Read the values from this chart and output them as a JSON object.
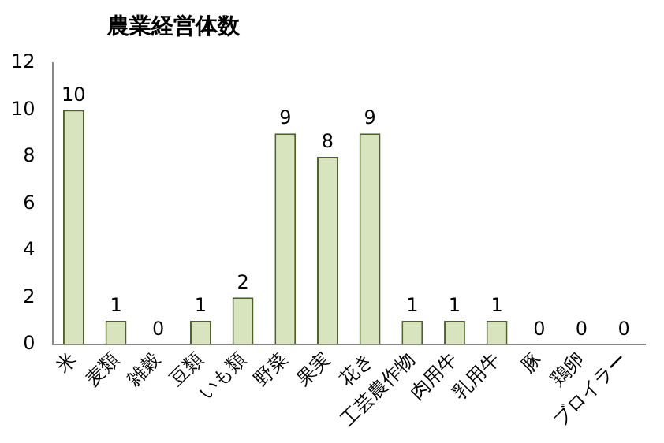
{
  "chart_data": {
    "type": "bar",
    "title": "農業経営体数",
    "categories": [
      "米",
      "麦類",
      "雑穀",
      "豆類",
      "いも類",
      "野菜",
      "果実",
      "花き",
      "工芸農作物",
      "肉用牛",
      "乳用牛",
      "豚",
      "鶏卵",
      "ブロイラー"
    ],
    "values": [
      10,
      1,
      0,
      1,
      2,
      9,
      8,
      9,
      1,
      1,
      1,
      0,
      0,
      0
    ],
    "color": "#d7e4bd",
    "ylim": [
      0,
      12
    ],
    "yticks": [
      0,
      2,
      4,
      6,
      8,
      10,
      12
    ],
    "grid": false,
    "legend": false,
    "data_labels": true
  }
}
